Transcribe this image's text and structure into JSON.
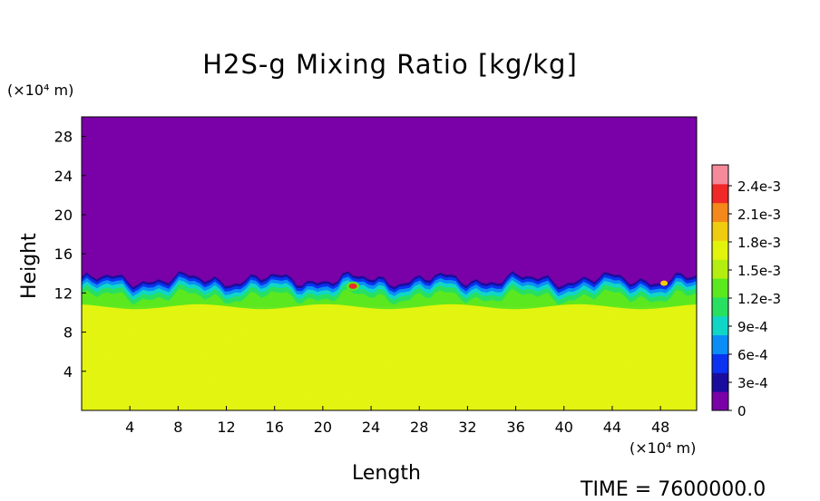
{
  "chart_data": {
    "type": "heatmap",
    "title": "H2S-g Mixing Ratio [kg/kg]",
    "xlabel": "Length",
    "ylabel": "Height",
    "x_unit": "(×10⁴ m)",
    "y_unit": "(×10⁴ m)",
    "x_range": [
      0,
      51
    ],
    "y_range": [
      0,
      30
    ],
    "x_ticks": [
      "4",
      "8",
      "12",
      "16",
      "20",
      "24",
      "28",
      "32",
      "36",
      "40",
      "44",
      "48"
    ],
    "y_ticks": [
      "4",
      "8",
      "12",
      "16",
      "20",
      "24",
      "28"
    ],
    "field_regions": [
      {
        "name": "upper layer",
        "value": 0,
        "y_range": [
          13.5,
          30
        ]
      },
      {
        "name": "mixing interface",
        "value_range": [
          0.0003,
          0.0015
        ],
        "y_range": [
          10.5,
          14
        ]
      },
      {
        "name": "lower layer",
        "value": 0.0018,
        "y_range": [
          0,
          10.5
        ]
      },
      {
        "name": "local maximum",
        "value": 0.0024,
        "x": 22.5,
        "y": 12.7
      }
    ],
    "colorbar": {
      "levels": [
        "2.4e-3",
        "2.1e-3",
        "1.8e-3",
        "1.5e-3",
        "1.2e-3",
        "9e-4",
        "6e-4",
        "3e-4",
        "0"
      ],
      "colors": [
        "#7a00a8",
        "#1a0d9e",
        "#0a32f0",
        "#0a8ef5",
        "#10d6c8",
        "#28e060",
        "#5ce81e",
        "#b4ee10",
        "#e2f40c",
        "#f0cc10",
        "#f4881a",
        "#f02828",
        "#f58a9a"
      ]
    },
    "footer_text": "TIME = 7600000.0"
  }
}
